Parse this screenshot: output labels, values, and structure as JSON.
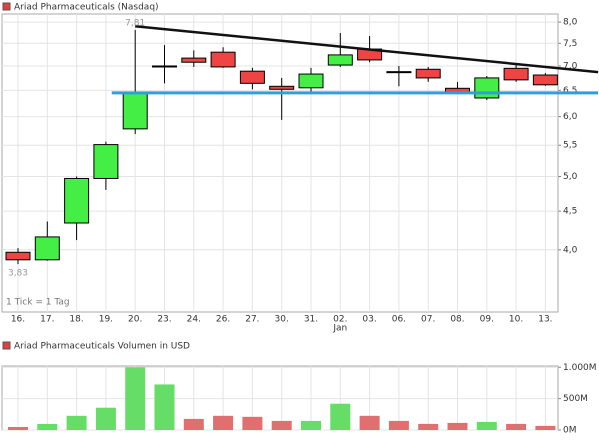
{
  "chart_data": [
    {
      "type": "candlestick",
      "title": "Ariad Pharmaceuticals (Nasdaq)",
      "legend_color": "#e04040",
      "categories": [
        "16.",
        "17.",
        "18.",
        "19.",
        "20.",
        "23.",
        "24.",
        "26.",
        "27.",
        "30.",
        "31.",
        "02.",
        "03.",
        "06.",
        "07.",
        "08.",
        "09.",
        "10.",
        "13."
      ],
      "x_sublabels": [
        null,
        null,
        null,
        null,
        null,
        null,
        null,
        null,
        null,
        null,
        null,
        "Jan",
        null,
        null,
        null,
        null,
        null,
        null,
        null
      ],
      "open": [
        3.97,
        3.88,
        4.34,
        4.97,
        5.78,
        7.0,
        7.17,
        7.3,
        6.89,
        6.58,
        6.55,
        7.02,
        7.37,
        6.88,
        6.93,
        6.54,
        6.35,
        6.95,
        6.81
      ],
      "high": [
        4.02,
        4.36,
        5.0,
        5.56,
        7.81,
        7.46,
        7.34,
        7.41,
        6.96,
        6.75,
        6.96,
        7.74,
        7.67,
        7.0,
        6.98,
        6.67,
        6.79,
        7.04,
        6.85
      ],
      "low": [
        3.83,
        3.87,
        4.12,
        4.8,
        5.69,
        6.64,
        6.98,
        6.96,
        6.52,
        5.94,
        6.45,
        6.98,
        7.08,
        6.58,
        6.67,
        6.45,
        6.31,
        6.67,
        6.59
      ],
      "close": [
        3.88,
        4.16,
        4.97,
        5.51,
        6.45,
        6.98,
        7.08,
        6.98,
        6.64,
        6.52,
        6.83,
        7.24,
        7.13,
        6.87,
        6.75,
        6.46,
        6.75,
        6.71,
        6.61
      ],
      "up_color": "#44ee44",
      "down_color": "#ee4444",
      "ylim": [
        3.31,
        8.2
      ],
      "log_scale": true,
      "grid": true,
      "yticks": [
        {
          "value": 4,
          "label": "4,0"
        },
        {
          "value": 4.5,
          "label": "4,5"
        },
        {
          "value": 5,
          "label": "5,0"
        },
        {
          "value": 5.5,
          "label": "5,5"
        },
        {
          "value": 6,
          "label": "6,0"
        },
        {
          "value": 6.5,
          "label": "6,5"
        },
        {
          "value": 7,
          "label": "7,0"
        },
        {
          "value": 7.5,
          "label": "7,5"
        },
        {
          "value": 8,
          "label": "8,0"
        }
      ],
      "annotations": [
        {
          "text": "7,81",
          "category": 4,
          "value": 7.81
        },
        {
          "text": "3,83",
          "category": 0,
          "value": 3.83
        }
      ],
      "footnote": "1 Tick = 1 Tag",
      "support_line": {
        "value": 6.45,
        "from": 3.2,
        "color": "#2aa0e0"
      },
      "trend_line": {
        "from": [
          4,
          7.9
        ],
        "to": [
          19.8,
          6.87
        ],
        "color": "#111111"
      }
    },
    {
      "type": "bar",
      "title": "Ariad Pharmaceuticals Volumen in USD",
      "legend_color": "#e04040",
      "categories": [
        null,
        null,
        null,
        null,
        null,
        null,
        null,
        null,
        null,
        null,
        null,
        null,
        null,
        null,
        null,
        null,
        null,
        null,
        null
      ],
      "values": [
        48,
        97,
        226,
        355,
        1000,
        726,
        177,
        226,
        210,
        145,
        145,
        419,
        226,
        145,
        97,
        113,
        129,
        97,
        65
      ],
      "colors": [
        "#e07070",
        "#66dd66",
        "#66dd66",
        "#66dd66",
        "#66dd66",
        "#66dd66",
        "#e07070",
        "#e07070",
        "#e07070",
        "#e07070",
        "#66dd66",
        "#66dd66",
        "#e07070",
        "#e07070",
        "#e07070",
        "#e07070",
        "#66dd66",
        "#e07070",
        "#e07070"
      ],
      "ylim": [
        0,
        1020
      ],
      "grid": true,
      "yticks": [
        {
          "value": 0,
          "label": "0M"
        },
        {
          "value": 500,
          "label": "500M"
        },
        {
          "value": 1000,
          "label": "1.000M"
        }
      ]
    }
  ]
}
